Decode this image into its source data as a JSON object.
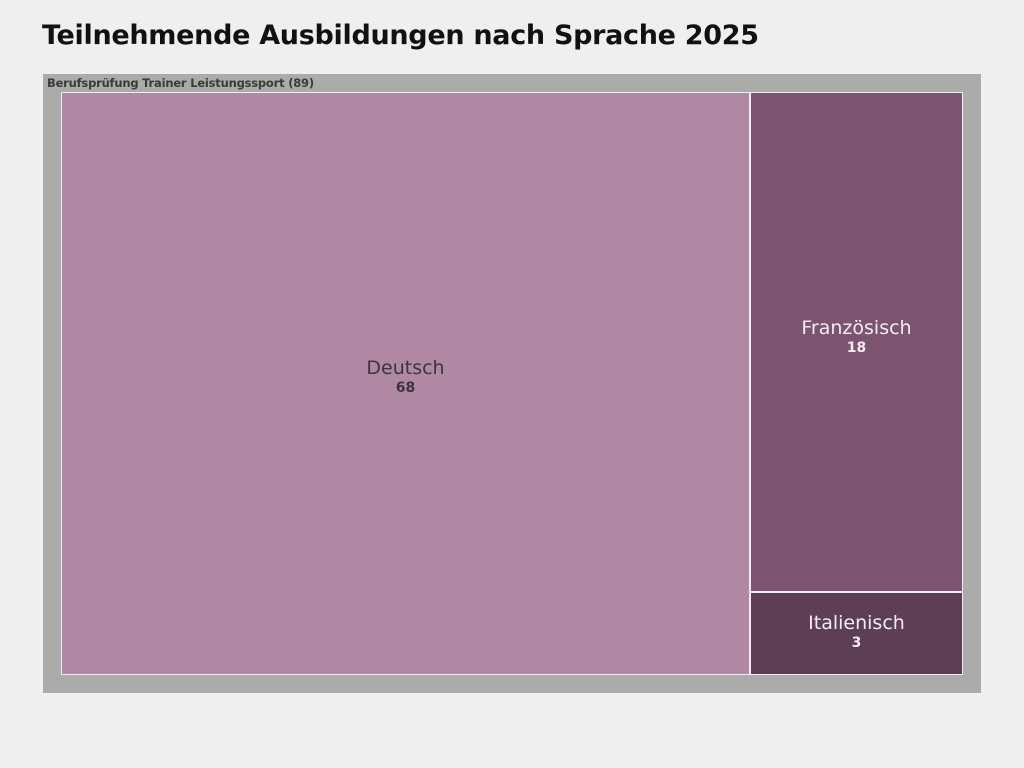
{
  "title": "Teilnehmende Ausbildungen nach Sprache 2025",
  "group": {
    "label": "Berufsprüfung Trainer Leistungssport (89)",
    "name": "Berufsprüfung Trainer Leistungssport",
    "total": 89
  },
  "cells": [
    {
      "name": "Deutsch",
      "value": "68",
      "color": "#AF89A4"
    },
    {
      "name": "Französisch",
      "value": "18",
      "color": "#7C546F"
    },
    {
      "name": "Italienisch",
      "value": "3",
      "color": "#5E3E55"
    }
  ],
  "chart_data": {
    "type": "treemap",
    "title": "Teilnehmende Ausbildungen nach Sprache 2025",
    "root": {
      "name": "Berufsprüfung Trainer Leistungssport",
      "value": 89
    },
    "categories": [
      "Deutsch",
      "Französisch",
      "Italienisch"
    ],
    "values": [
      68,
      18,
      3
    ],
    "colors": [
      "#AF89A4",
      "#7C546F",
      "#5E3E55"
    ],
    "legend": "none"
  }
}
